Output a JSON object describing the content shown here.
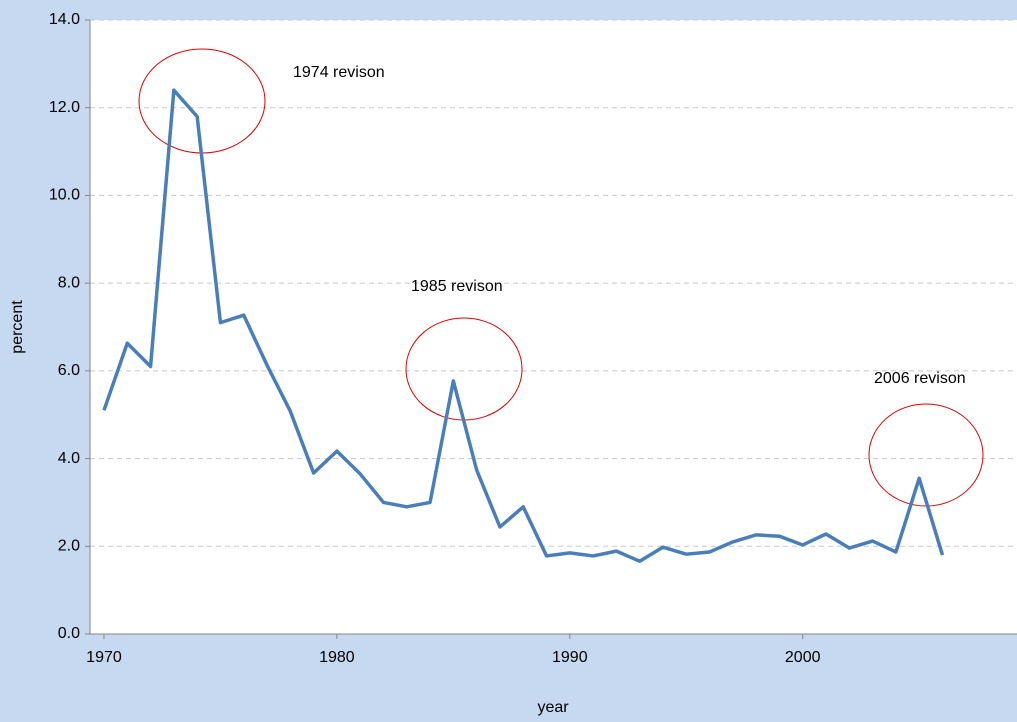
{
  "chart_data": {
    "type": "line",
    "x_label": "year",
    "y_label": "percent",
    "x": [
      1970,
      1971,
      1972,
      1973,
      1974,
      1975,
      1976,
      1977,
      1978,
      1979,
      1980,
      1981,
      1982,
      1983,
      1984,
      1985,
      1986,
      1987,
      1988,
      1989,
      1990,
      1991,
      1992,
      1993,
      1994,
      1995,
      1996,
      1997,
      1998,
      1999,
      2000,
      2001,
      2002,
      2003,
      2004,
      2005,
      2006
    ],
    "series": [
      {
        "color": "#4a7ebb",
        "values": [
          5.1,
          6.63,
          6.1,
          12.4,
          11.8,
          7.1,
          7.27,
          6.13,
          5.08,
          3.67,
          4.17,
          3.65,
          3.0,
          2.9,
          3.0,
          5.77,
          3.74,
          2.44,
          2.9,
          1.78,
          1.85,
          1.78,
          1.89,
          1.66,
          1.98,
          1.82,
          1.87,
          2.1,
          2.26,
          2.23,
          2.03,
          2.28,
          1.96,
          2.12,
          1.87,
          3.55,
          1.8
        ]
      }
    ],
    "xlim": [
      1969.4,
      2009.2
    ],
    "xticks": [
      1970,
      1980,
      1990,
      2000
    ],
    "ylim": [
      0,
      14
    ],
    "yticks": [
      {
        "value": 0,
        "label": "0.0"
      },
      {
        "value": 2,
        "label": "2.0"
      },
      {
        "value": 4,
        "label": "4.0"
      },
      {
        "value": 6,
        "label": "6.0"
      },
      {
        "value": 8,
        "label": "8.0"
      },
      {
        "value": 10,
        "label": "10.0"
      },
      {
        "value": 12,
        "label": "12.0"
      },
      {
        "value": 14,
        "label": "14.0"
      }
    ],
    "grid": true,
    "annotations": [
      "1974 revison",
      "1985 revison",
      "2006 revison"
    ]
  }
}
